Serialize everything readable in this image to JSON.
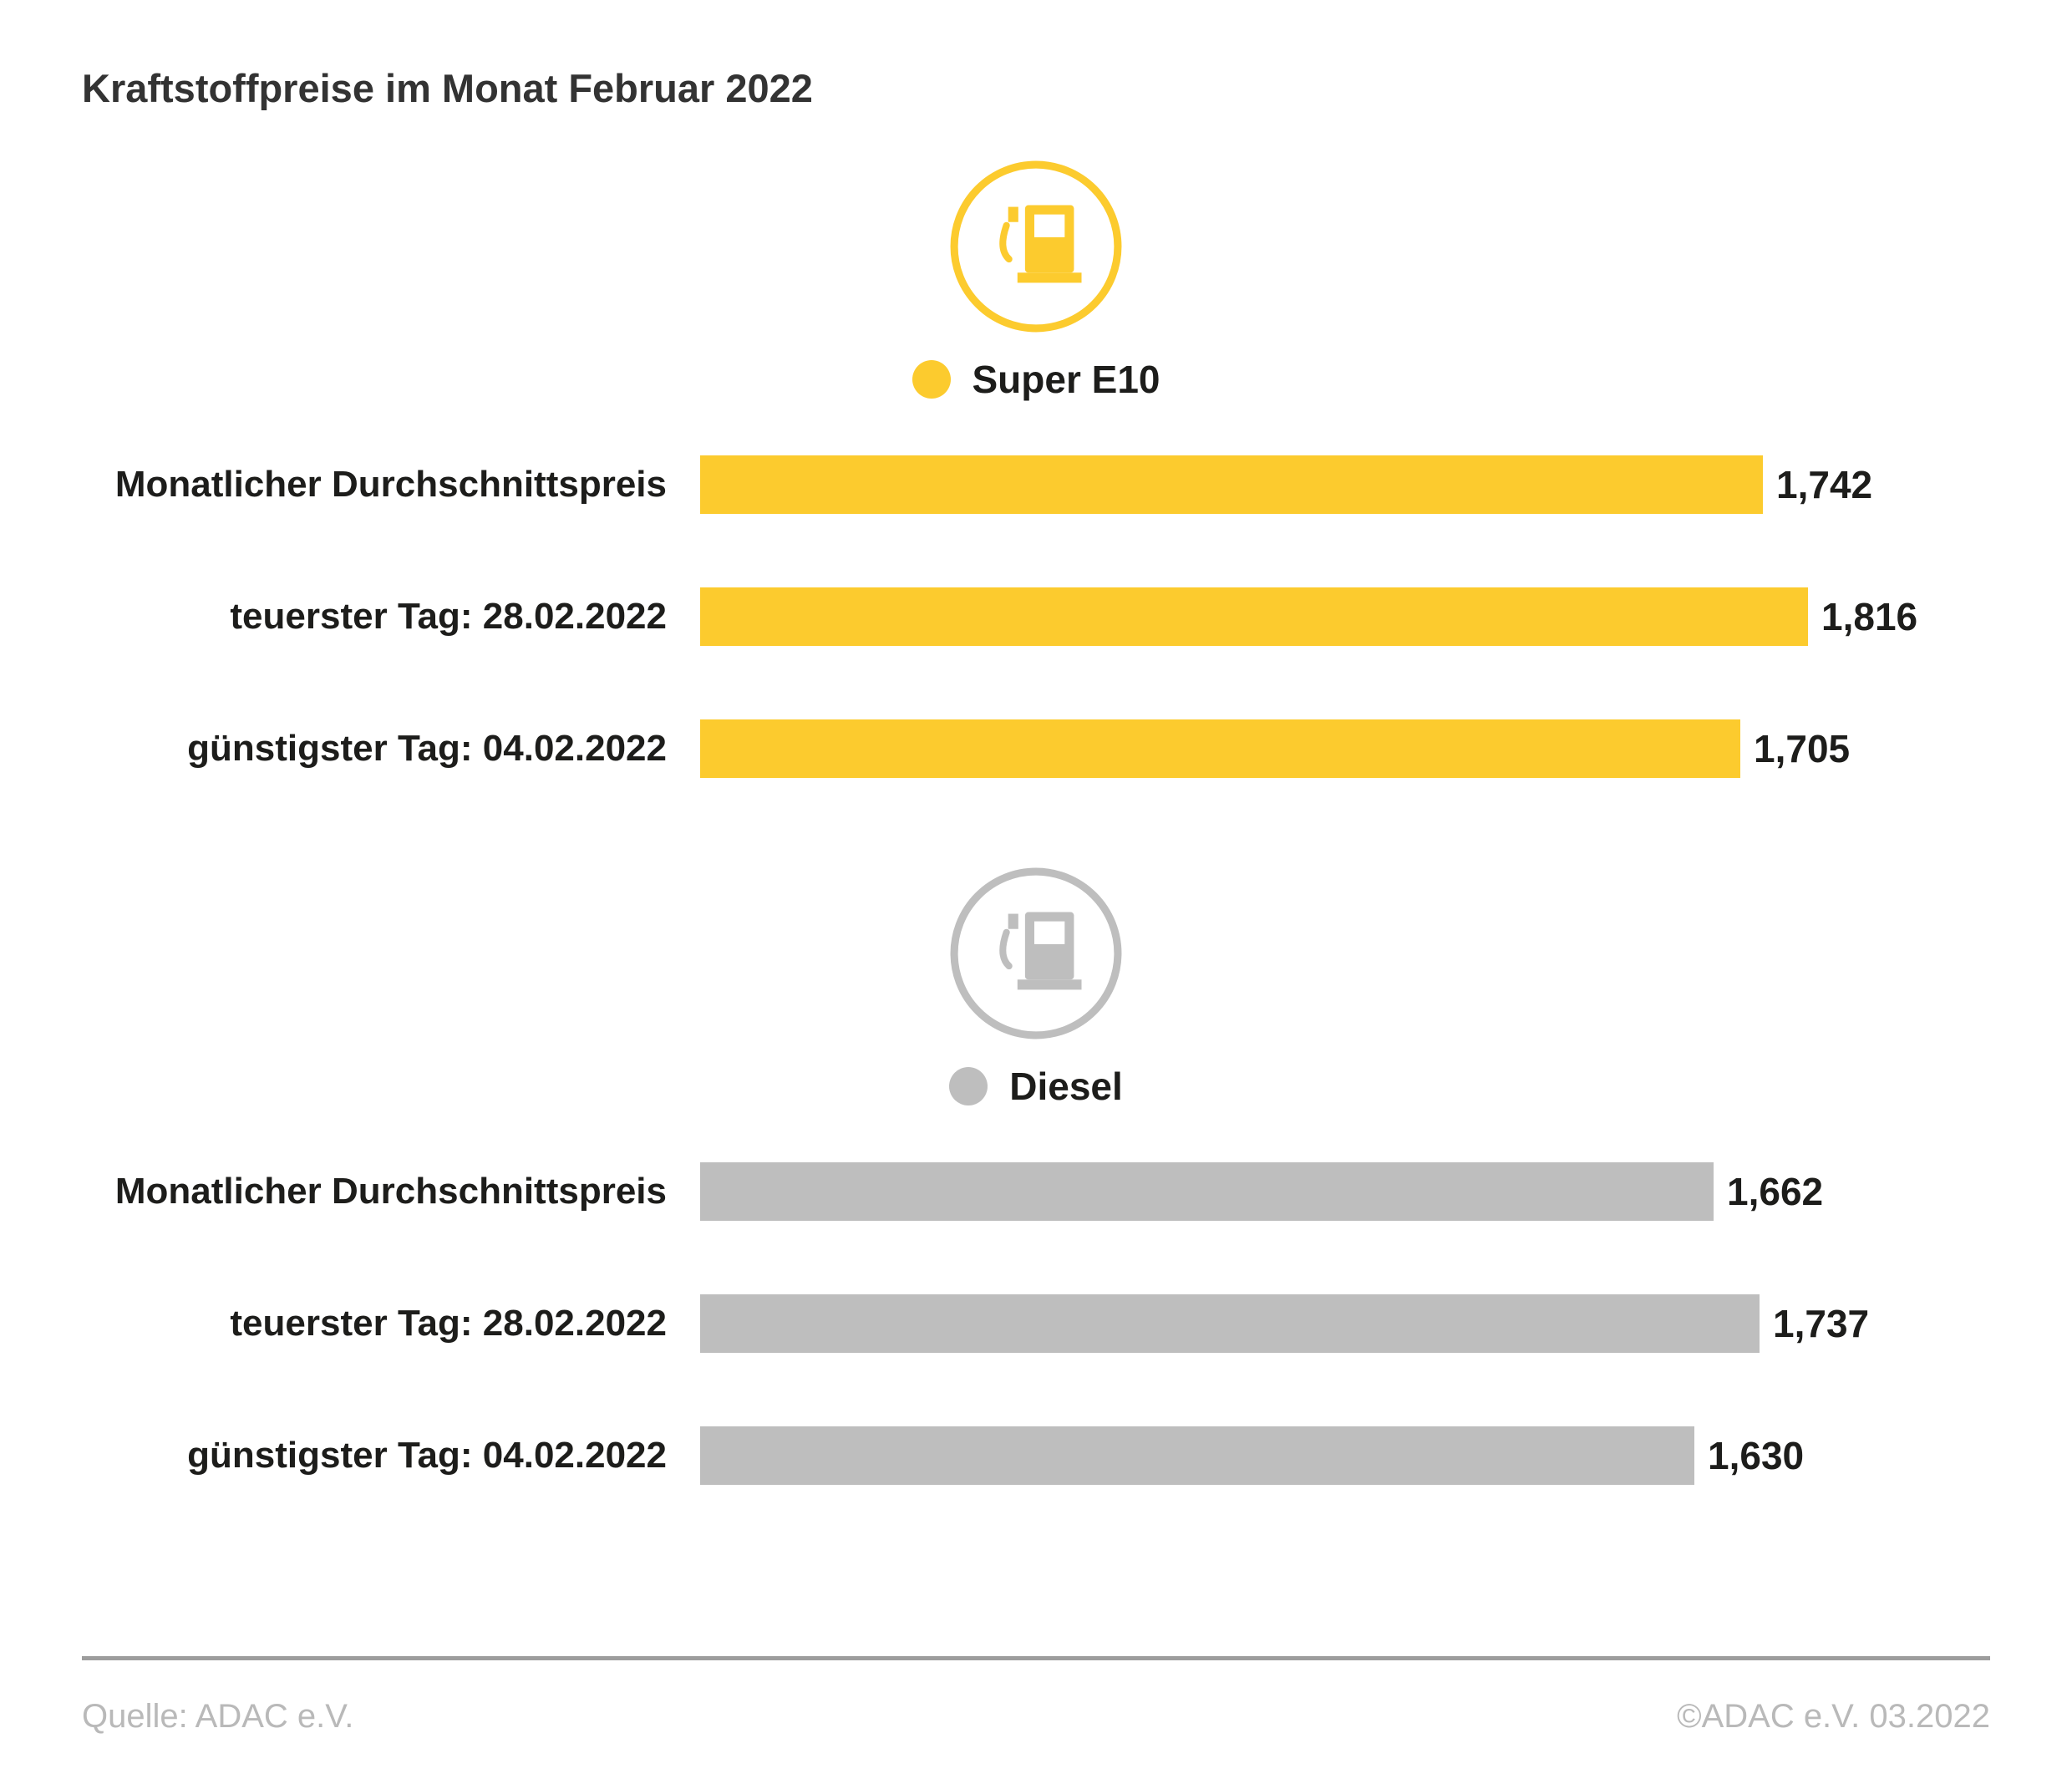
{
  "title": "Kraftstoffpreise im Monat Februar 2022",
  "footer": {
    "source": "Quelle: ADAC e.V.",
    "copyright": "©ADAC e.V. 03.2022"
  },
  "chart_data": {
    "type": "bar",
    "orientation": "horizontal",
    "title": "Kraftstoffpreise im Monat Februar 2022",
    "categories": [
      "Monatlicher Durchschnittspreis",
      "teuerster Tag: 28.02.2022",
      "günstigster Tag: 04.02.2022"
    ],
    "series": [
      {
        "name": "Super E10",
        "color": "#FCCB2E",
        "icon": "fuel-pump-icon",
        "values": [
          1.742,
          1.816,
          1.705
        ],
        "labels": [
          "1,742",
          "1,816",
          "1,705"
        ]
      },
      {
        "name": "Diesel",
        "color": "#BEBEBE",
        "icon": "fuel-pump-icon",
        "values": [
          1.662,
          1.737,
          1.63
        ],
        "labels": [
          "1,662",
          "1,737",
          "1,630"
        ]
      }
    ],
    "xlim": [
      0,
      1.9
    ],
    "value_labels": true,
    "grid": false,
    "legend_position": "above-each-group"
  }
}
